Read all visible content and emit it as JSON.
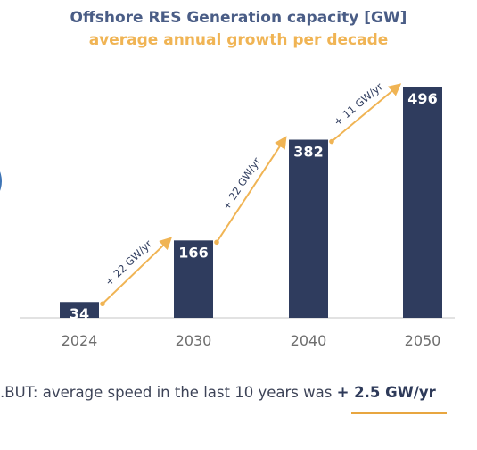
{
  "title": "Offshore RES Generation capacity [GW]",
  "subtitle": "average annual growth per decade",
  "footer": {
    "prefix": ".BUT: average speed in the last 10 years was",
    "highlight": "+ 2.5 GW/yr"
  },
  "colors": {
    "bar": "#2f3c5e",
    "arrow": "#f0b454",
    "title": "#4a5d86",
    "subtitle": "#f0b454",
    "baseline": "#d9d9d9",
    "tick_label": "#6e6e6e"
  },
  "chart_data": {
    "type": "bar",
    "title": "Offshore RES Generation capacity [GW]",
    "subtitle": "average annual growth per decade",
    "categories": [
      "2024",
      "2030",
      "2040",
      "2050"
    ],
    "values": [
      34,
      166,
      382,
      496
    ],
    "ylim": [
      0,
      496
    ],
    "grid": false,
    "legend": false,
    "annotations": [
      {
        "from": "2024",
        "to": "2030",
        "text": "+ 22 GW/yr"
      },
      {
        "from": "2030",
        "to": "2040",
        "text": "+ 22 GW/yr"
      },
      {
        "from": "2040",
        "to": "2050",
        "text": "+ 11 GW/yr"
      }
    ]
  }
}
